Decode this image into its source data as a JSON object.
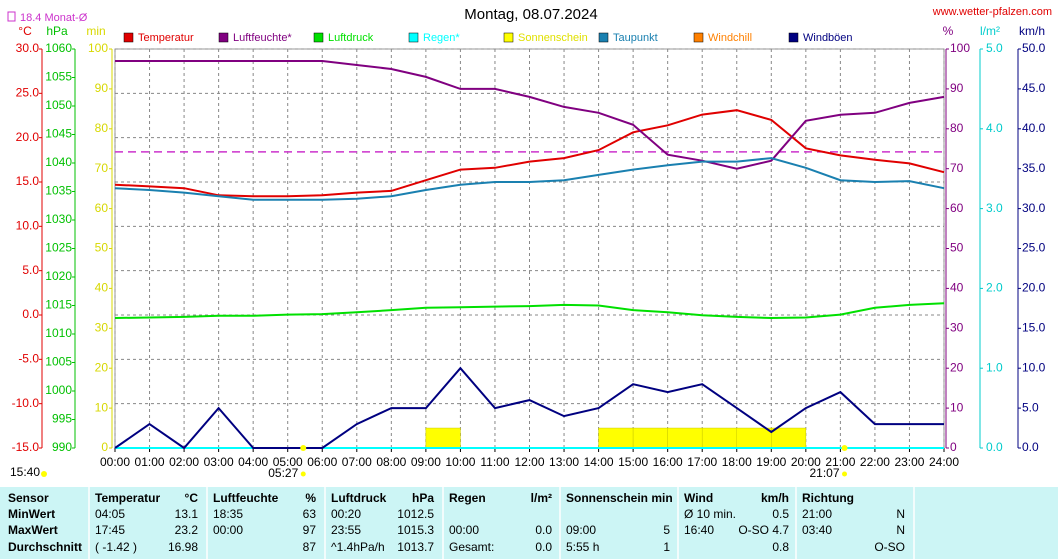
{
  "chart_data": {
    "type": "line",
    "title": "Montag, 08.07.2024",
    "source": "www.wetter-pfalzen.com",
    "updated": "15:40",
    "monthly_avg": {
      "label": "18.4 Monat-Ø",
      "value": 18.4,
      "axis": "°C",
      "color": "#cc33cc"
    },
    "grid": true,
    "x": [
      0,
      1,
      2,
      3,
      4,
      5,
      6,
      7,
      8,
      9,
      10,
      11,
      12,
      13,
      14,
      15,
      16,
      17,
      18,
      19,
      20,
      21,
      22,
      23,
      24
    ],
    "xlim": [
      0,
      24
    ],
    "xticks": [
      {
        "value": 0,
        "label": "00:00"
      },
      {
        "value": 1,
        "label": "01:00"
      },
      {
        "value": 2,
        "label": "02:00"
      },
      {
        "value": 3,
        "label": "03:00"
      },
      {
        "value": 4,
        "label": "04:00"
      },
      {
        "value": 5,
        "label": "05:00"
      },
      {
        "value": 6,
        "label": "06:00"
      },
      {
        "value": 7,
        "label": "07:00"
      },
      {
        "value": 8,
        "label": "08:00"
      },
      {
        "value": 9,
        "label": "09:00"
      },
      {
        "value": 10,
        "label": "10:00"
      },
      {
        "value": 11,
        "label": "11:00"
      },
      {
        "value": 12,
        "label": "12:00"
      },
      {
        "value": 13,
        "label": "13:00"
      },
      {
        "value": 14,
        "label": "14:00"
      },
      {
        "value": 15,
        "label": "15:00"
      },
      {
        "value": 16,
        "label": "16:00"
      },
      {
        "value": 17,
        "label": "17:00"
      },
      {
        "value": 18,
        "label": "18:00"
      },
      {
        "value": 19,
        "label": "19:00"
      },
      {
        "value": 20,
        "label": "20:00"
      },
      {
        "value": 21,
        "label": "21:00"
      },
      {
        "value": 22,
        "label": "22:00"
      },
      {
        "value": 23,
        "label": "23:00"
      },
      {
        "value": 24,
        "label": "24:00"
      }
    ],
    "annotations": [
      {
        "text": "05:27",
        "x": 5.45
      },
      {
        "text": "21:07",
        "x": 21.12
      }
    ],
    "axes": [
      {
        "name": "°C",
        "side": "left",
        "color": "#e00000",
        "lim": [
          -15,
          30
        ],
        "ticks": [
          {
            "value": -15,
            "label": "-15.0"
          },
          {
            "value": -10,
            "label": "-10.0"
          },
          {
            "value": -5,
            "label": "-5.0"
          },
          {
            "value": 0,
            "label": "0.0"
          },
          {
            "value": 5,
            "label": "5.0"
          },
          {
            "value": 10,
            "label": "10.0"
          },
          {
            "value": 15,
            "label": "15.0"
          },
          {
            "value": 20,
            "label": "20.0"
          },
          {
            "value": 25,
            "label": "25.0"
          },
          {
            "value": 30,
            "label": "30.0"
          }
        ]
      },
      {
        "name": "hPa",
        "side": "left",
        "color": "#00c000",
        "lim": [
          990,
          1060
        ],
        "ticks": [
          990,
          995,
          1000,
          1005,
          1010,
          1015,
          1020,
          1025,
          1030,
          1035,
          1040,
          1045,
          1050,
          1055,
          1060
        ]
      },
      {
        "name": "min",
        "side": "left",
        "color": "#d8d800",
        "lim": [
          0,
          100
        ],
        "ticks": [
          0,
          10,
          20,
          30,
          40,
          50,
          60,
          70,
          80,
          90,
          100
        ]
      },
      {
        "name": "%",
        "side": "right",
        "color": "#800080",
        "lim": [
          0,
          100
        ],
        "ticks": [
          0,
          10,
          20,
          30,
          40,
          50,
          60,
          70,
          80,
          90,
          100
        ]
      },
      {
        "name": "l/m²",
        "side": "right",
        "color": "#00cccc",
        "lim": [
          0,
          5
        ],
        "ticks": [
          {
            "value": 0,
            "label": "0.0"
          },
          {
            "value": 1,
            "label": "1.0"
          },
          {
            "value": 2,
            "label": "2.0"
          },
          {
            "value": 3,
            "label": "3.0"
          },
          {
            "value": 4,
            "label": "4.0"
          },
          {
            "value": 5,
            "label": "5.0"
          }
        ]
      },
      {
        "name": "km/h",
        "side": "right",
        "color": "#000080",
        "lim": [
          0,
          50
        ],
        "ticks": [
          {
            "value": 0,
            "label": "0.0"
          },
          {
            "value": 5,
            "label": "5.0"
          },
          {
            "value": 10,
            "label": "10.0"
          },
          {
            "value": 15,
            "label": "15.0"
          },
          {
            "value": 20,
            "label": "20.0"
          },
          {
            "value": 25,
            "label": "25.0"
          },
          {
            "value": 30,
            "label": "30.0"
          },
          {
            "value": 35,
            "label": "35.0"
          },
          {
            "value": 40,
            "label": "40.0"
          },
          {
            "value": 45,
            "label": "45.0"
          },
          {
            "value": 50,
            "label": "50.0"
          }
        ]
      }
    ],
    "series": [
      {
        "name": "Temperatur",
        "color": "#e00000",
        "axis": "°C",
        "style": "line",
        "values": [
          14.7,
          14.5,
          14.3,
          13.5,
          13.4,
          13.4,
          13.5,
          13.8,
          14.0,
          15.2,
          16.4,
          16.6,
          17.3,
          17.7,
          18.6,
          20.6,
          21.4,
          22.6,
          23.1,
          22.0,
          18.8,
          18.0,
          17.5,
          17.1,
          16.1
        ]
      },
      {
        "name": "Luftfeuchte*",
        "color": "#800080",
        "axis": "%",
        "style": "line",
        "values": [
          97,
          97,
          97,
          97,
          97,
          97,
          97,
          96,
          95,
          93,
          90,
          90,
          88,
          85.5,
          84,
          81,
          73.5,
          72,
          70,
          72,
          82,
          83.5,
          84,
          86.5,
          88
        ]
      },
      {
        "name": "Luftdruck",
        "color": "#00e000",
        "axis": "hPa",
        "style": "line",
        "values": [
          1012.8,
          1012.9,
          1013.0,
          1013.2,
          1013.2,
          1013.4,
          1013.5,
          1013.8,
          1014.2,
          1014.6,
          1014.7,
          1014.8,
          1014.9,
          1015.1,
          1015.0,
          1014.2,
          1013.8,
          1013.3,
          1013.0,
          1012.8,
          1012.9,
          1013.4,
          1014.6,
          1015.1,
          1015.4
        ]
      },
      {
        "name": "Regen*",
        "color": "#00ffff",
        "axis": "l/m²",
        "style": "line",
        "values": [
          0,
          0,
          0,
          0,
          0,
          0,
          0,
          0,
          0,
          0,
          0,
          0,
          0,
          0,
          0,
          0,
          0,
          0,
          0,
          0,
          0,
          0,
          0,
          0,
          0
        ]
      },
      {
        "name": "Sonnenschein",
        "color": "#ffff00",
        "axis": "min",
        "style": "bar",
        "values": [
          0,
          0,
          0,
          0,
          0,
          0,
          0,
          0,
          0,
          5,
          0,
          0,
          0,
          0,
          5,
          5,
          5,
          5,
          5,
          5,
          0,
          0,
          0,
          0,
          0
        ]
      },
      {
        "name": "Taupunkt",
        "color": "#1a80b0",
        "axis": "°C",
        "style": "line",
        "values": [
          14.3,
          14.1,
          13.8,
          13.4,
          13.0,
          13.0,
          13.0,
          13.1,
          13.4,
          14.1,
          14.7,
          15.0,
          15.0,
          15.2,
          15.8,
          16.4,
          16.9,
          17.3,
          17.3,
          17.7,
          16.6,
          15.2,
          15.0,
          15.1,
          14.3
        ]
      },
      {
        "name": "Windchill",
        "color": "#ff8000",
        "axis": "°C",
        "style": "line",
        "values": [
          null,
          null,
          null,
          null,
          null,
          null,
          null,
          null,
          null,
          null,
          null,
          null,
          null,
          null,
          null,
          null,
          null,
          null,
          null,
          null,
          null,
          null,
          null,
          null,
          null
        ]
      },
      {
        "name": "Windböen",
        "color": "#000080",
        "axis": "km/h",
        "style": "line",
        "values": [
          0,
          3,
          0,
          5,
          0,
          0,
          0,
          3,
          5,
          5,
          10,
          5,
          6,
          4,
          5,
          8,
          7,
          8,
          5,
          2,
          5,
          7,
          3,
          3,
          3
        ]
      }
    ]
  },
  "table": {
    "rows": [
      [
        {
          "left": "Sensor"
        },
        {
          "left": "Temperatur",
          "right": "°C"
        },
        {
          "left": "Luftfeuchte",
          "right": "%"
        },
        {
          "left": "Luftdruck",
          "right": "hPa"
        },
        {
          "left": "Regen",
          "right": "l/m²"
        },
        {
          "left": "Sonnenschein min"
        },
        {
          "left": "Wind",
          "right": "km/h"
        },
        {
          "left": "Richtung"
        }
      ],
      [
        {
          "left": "MinWert"
        },
        {
          "left": "04:05",
          "right": "13.1"
        },
        {
          "left": "18:35",
          "right": "63"
        },
        {
          "left": "00:20",
          "right": "1012.5"
        },
        {},
        {},
        {
          "left": "Ø 10 min.",
          "right": "0.5"
        },
        {
          "left": "21:00",
          "right": "N"
        }
      ],
      [
        {
          "left": "MaxWert"
        },
        {
          "left": "17:45",
          "right": "23.2"
        },
        {
          "left": "00:00",
          "right": "97"
        },
        {
          "left": "23:55",
          "right": "1015.3"
        },
        {
          "left": "00:00",
          "right": "0.0"
        },
        {
          "left": "09:00",
          "right": "5"
        },
        {
          "left": "16:40",
          "right": "O-SO 4.7"
        },
        {
          "left": "03:40",
          "right": "N"
        }
      ],
      [
        {
          "left": "Durchschnitt"
        },
        {
          "left": "( -1.42 )",
          "right": "16.98"
        },
        {
          "right": "87"
        },
        {
          "left": "^1.4hPa/h",
          "right": "1013.7"
        },
        {
          "left": "Gesamt:",
          "right": "0.0"
        },
        {
          "left": "5:55 h",
          "right": "1"
        },
        {
          "right": "0.8"
        },
        {
          "right": "O-SO"
        }
      ]
    ]
  }
}
